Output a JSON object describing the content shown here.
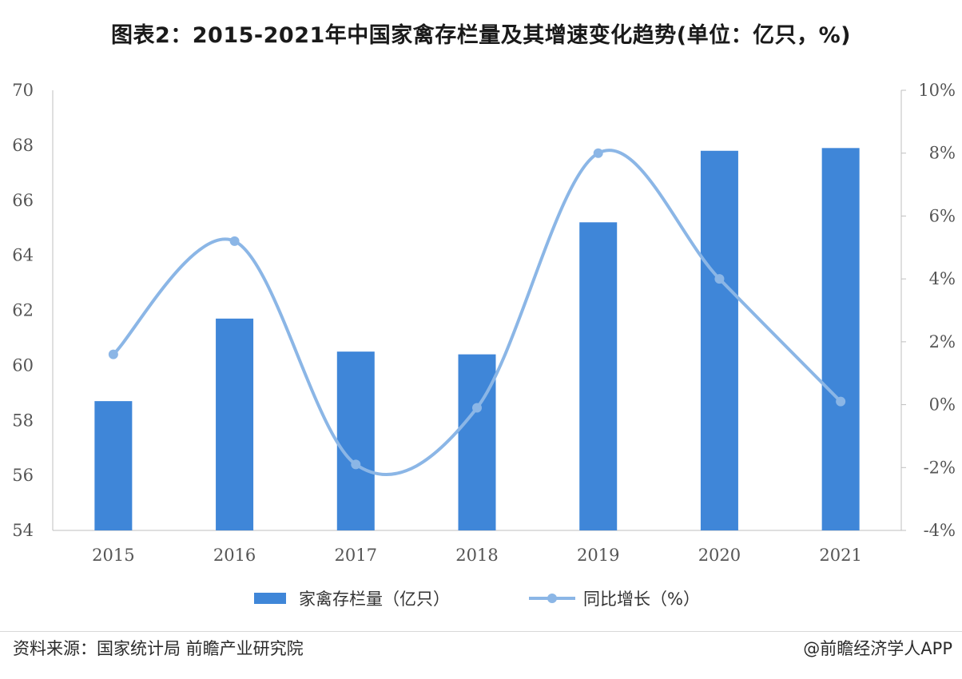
{
  "title": "图表2：2015-2021年中国家禽存栏量及其增速变化趋势(单位：亿只，%)",
  "source": "资料来源：国家统计局 前瞻产业研究院",
  "credit": "@前瞻经济学人APP",
  "colors": {
    "bar": "#3f86d8",
    "line": "#8bb6e6",
    "axis": "#bfbfbf"
  },
  "chart_data": {
    "type": "bar",
    "categories": [
      "2015",
      "2016",
      "2017",
      "2018",
      "2019",
      "2020",
      "2021"
    ],
    "series": [
      {
        "name": "家禽存栏量（亿只）",
        "type": "bar",
        "axis": "left",
        "values": [
          58.7,
          61.7,
          60.5,
          60.4,
          65.2,
          67.8,
          67.9
        ]
      },
      {
        "name": "同比增长（%）",
        "type": "line",
        "axis": "right",
        "smooth": true,
        "values": [
          1.6,
          5.2,
          -1.9,
          -0.1,
          8.0,
          4.0,
          0.1
        ]
      }
    ],
    "left_axis": {
      "min": 54,
      "max": 70,
      "step": 2,
      "tick_labels": [
        "54",
        "56",
        "58",
        "60",
        "62",
        "64",
        "66",
        "68",
        "70"
      ]
    },
    "right_axis": {
      "min": -4,
      "max": 10,
      "step": 2,
      "tick_labels": [
        "-4%",
        "-2%",
        "0%",
        "2%",
        "4%",
        "6%",
        "8%",
        "10%"
      ]
    },
    "legend_position": "bottom",
    "grid": false
  }
}
